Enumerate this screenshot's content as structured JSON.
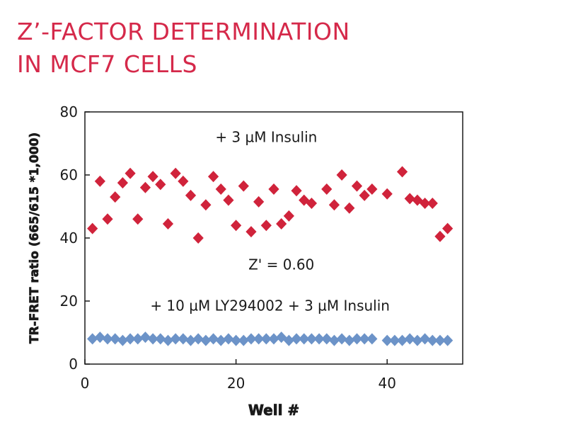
{
  "title_lines": [
    "Z’-FACTOR DETERMINATION",
    "IN MCF7 CELLS"
  ],
  "colors": {
    "title": "#d5294a",
    "series_insulin": "#d0233b",
    "series_ly": "#6c93c8",
    "axis": "#1a1a1a"
  },
  "chart_data": {
    "type": "scatter",
    "title": "Z’-FACTOR DETERMINATION IN MCF7 CELLS",
    "xlabel": "Well #",
    "ylabel": "TR-FRET ratio (665/615 *1,000)",
    "xlim": [
      0,
      50
    ],
    "ylim": [
      0,
      80
    ],
    "xticks": [
      0,
      20,
      40
    ],
    "yticks": [
      0,
      20,
      40,
      60,
      80
    ],
    "grid": false,
    "marker": "diamond",
    "series": [
      {
        "name": "+ 3 µM Insulin",
        "color": "#d0233b",
        "x": [
          1,
          2,
          3,
          4,
          5,
          6,
          7,
          8,
          9,
          10,
          11,
          12,
          13,
          14,
          15,
          16,
          17,
          18,
          19,
          20,
          21,
          22,
          23,
          24,
          25,
          26,
          27,
          28,
          29,
          30,
          32,
          33,
          34,
          35,
          36,
          37,
          38,
          40,
          42,
          43,
          44,
          45,
          46,
          47,
          48
        ],
        "y": [
          43,
          58,
          46,
          53,
          57.5,
          60.5,
          46,
          56,
          59.5,
          57,
          44.5,
          60.5,
          58,
          53.5,
          40,
          50.5,
          59.5,
          55.5,
          52,
          44,
          56.5,
          42,
          51.5,
          44,
          55.5,
          44.5,
          47,
          55,
          52,
          51,
          55.5,
          50.5,
          60,
          49.5,
          56.5,
          53.5,
          55.5,
          54,
          61,
          52.5,
          52,
          51,
          51,
          40.5,
          43
        ]
      },
      {
        "name": "+ 10 µM LY294002 + 3 µM Insulin",
        "color": "#6c93c8",
        "x": [
          1,
          2,
          3,
          4,
          5,
          6,
          7,
          8,
          9,
          10,
          11,
          12,
          13,
          14,
          15,
          16,
          17,
          18,
          19,
          20,
          21,
          22,
          23,
          24,
          25,
          26,
          27,
          28,
          29,
          30,
          31,
          32,
          33,
          34,
          35,
          36,
          37,
          38,
          40,
          41,
          42,
          43,
          44,
          45,
          46,
          47,
          48
        ],
        "y": [
          8,
          8.5,
          8,
          8,
          7.5,
          8,
          8,
          8.5,
          8,
          8,
          7.5,
          8,
          8,
          7.5,
          8,
          7.5,
          8,
          7.5,
          8,
          7.5,
          7.5,
          8,
          8,
          8,
          8,
          8.5,
          7.5,
          8,
          8,
          8,
          8,
          8,
          7.5,
          8,
          7.5,
          8,
          8,
          8,
          7.5,
          7.5,
          7.5,
          8,
          7.5,
          8,
          7.5,
          7.5,
          7.5
        ]
      }
    ],
    "annotations": [
      {
        "text": "+ 3 µM Insulin",
        "x": 24,
        "y": 70.5
      },
      {
        "text": "Z' = 0.60",
        "x": 26,
        "y": 30
      },
      {
        "text": "+ 10 µM LY294002 + 3 µM Insulin",
        "x": 24.5,
        "y": 17
      }
    ]
  }
}
